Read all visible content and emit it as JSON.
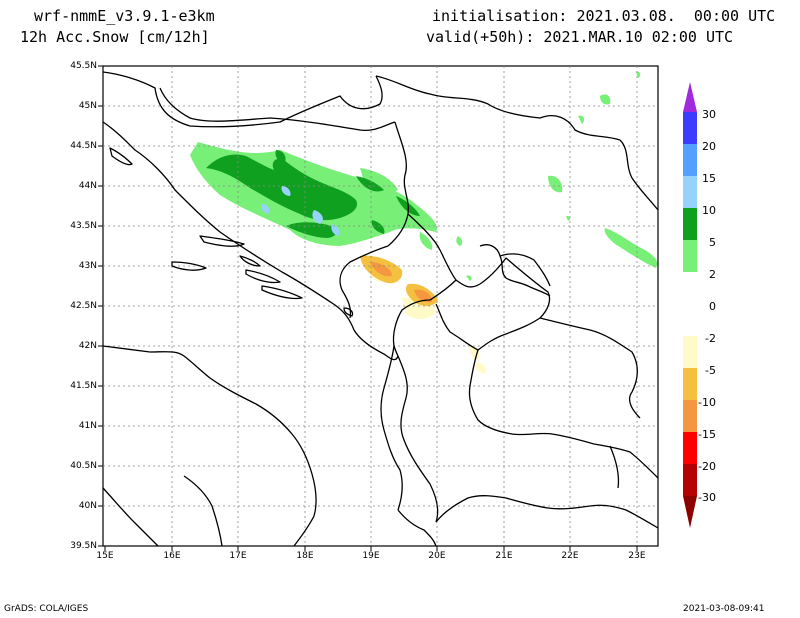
{
  "header": {
    "model": "wrf-nmmE_v3.9.1-e3km",
    "field": "12h Acc.Snow [cm/12h]",
    "init": "initialisation: 2021.03.08.  00:00 UTC",
    "valid": "valid(+50h): 2021.MAR.10 02:00 UTC"
  },
  "footer": {
    "left": "GrADS: COLA/IGES",
    "right": "2021-03-08-09:41"
  },
  "map": {
    "lat_labels": [
      "45.5N",
      "45N",
      "44.5N",
      "44N",
      "43.5N",
      "43N",
      "42.5N",
      "42N",
      "41.5N",
      "41N",
      "40.5N",
      "40N",
      "39.5N"
    ],
    "lon_labels": [
      "15E",
      "16E",
      "17E",
      "18E",
      "19E",
      "20E",
      "21E",
      "22E",
      "23E"
    ]
  },
  "colorbar": {
    "labels": [
      "30",
      "20",
      "15",
      "10",
      "5",
      "2",
      "0",
      "-2",
      "-5",
      "-10",
      "-15",
      "-20",
      "-30"
    ],
    "colors": [
      "#a02bdc",
      "#3c3cff",
      "#55a0ff",
      "#96d2fa",
      "#10a020",
      "#78f078",
      "#ffffff",
      "#fffac8",
      "#f5c040",
      "#f59640",
      "#ff0000",
      "#b40000",
      "#8c0000"
    ]
  }
}
